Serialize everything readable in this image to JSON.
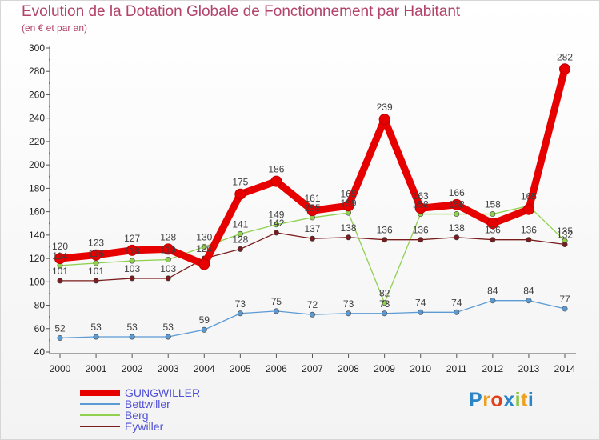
{
  "chart_data": {
    "type": "line",
    "title": "Evolution de la Dotation Globale de Fonctionnement par Habitant",
    "subtitle": "(en € et par an)",
    "xlabel": "",
    "ylabel": "",
    "ylim": [
      40,
      300
    ],
    "yticks": [
      40,
      60,
      80,
      100,
      120,
      140,
      160,
      180,
      200,
      220,
      240,
      260,
      280,
      300
    ],
    "categories": [
      "2000",
      "2001",
      "2002",
      "2003",
      "2004",
      "2005",
      "2006",
      "2007",
      "2008",
      "2009",
      "2010",
      "2011",
      "2012",
      "2013",
      "2014"
    ],
    "grid": false,
    "legend": "bottom-left",
    "series": [
      {
        "name": "GUNGWILLER",
        "color": "#e60000",
        "labels": true,
        "values": [
          120,
          123,
          127,
          128,
          115,
          175,
          186,
          161,
          165,
          239,
          163,
          166,
          150,
          162,
          282
        ],
        "value_labels": [
          "120",
          "123",
          "127",
          "128",
          "",
          "175",
          "186",
          "161",
          "165",
          "239",
          "163",
          "166",
          "",
          "",
          "282"
        ]
      },
      {
        "name": "Bettwiller",
        "color": "#5b9bd5",
        "labels": true,
        "values": [
          52,
          53,
          53,
          53,
          59,
          73,
          75,
          72,
          73,
          73,
          74,
          74,
          84,
          84,
          77
        ],
        "value_labels": [
          "52",
          "53",
          "53",
          "53",
          "59",
          "73",
          "75",
          "72",
          "73",
          "73",
          "74",
          "74",
          "84",
          "84",
          "77"
        ]
      },
      {
        "name": "Berg",
        "color": "#8fd14f",
        "labels": true,
        "values": [
          114,
          116,
          118,
          119,
          130,
          141,
          149,
          155,
          159,
          82,
          158,
          158,
          158,
          165,
          135
        ],
        "value_labels": [
          "114",
          "116",
          "118",
          "119",
          "130",
          "141",
          "149",
          "155",
          "159",
          "82",
          "158",
          "158",
          "158",
          "165",
          "135"
        ]
      },
      {
        "name": "Eywiller",
        "color": "#7a1c1c",
        "labels": true,
        "values": [
          101,
          101,
          103,
          103,
          120,
          128,
          142,
          137,
          138,
          136,
          136,
          138,
          136,
          136,
          132
        ],
        "value_labels": [
          "101",
          "101",
          "103",
          "103",
          "120",
          "128",
          "142",
          "137",
          "138",
          "136",
          "136",
          "138",
          "136",
          "136",
          "132"
        ]
      }
    ]
  },
  "logo": {
    "text": "Proxiti",
    "letters": [
      "P",
      "r",
      "o",
      "x",
      "i",
      "t",
      "i"
    ],
    "colors": [
      "#2a84c6",
      "#f0a020",
      "#e0401a",
      "#2a84c6",
      "#8cc63f",
      "#f0a020",
      "#2a84c6"
    ]
  }
}
